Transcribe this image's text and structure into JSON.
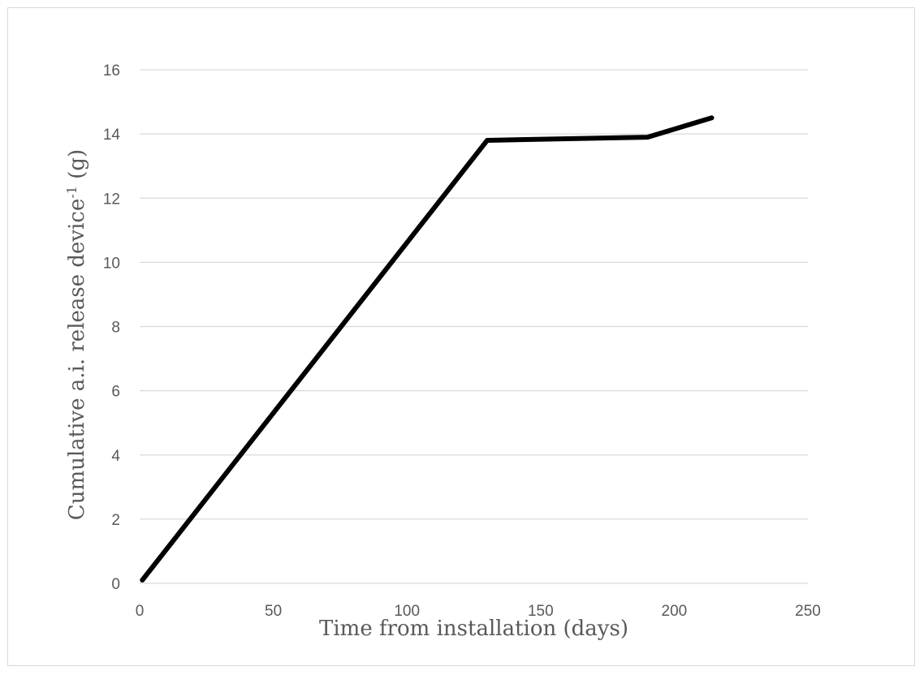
{
  "chart_data": {
    "type": "line",
    "title": "",
    "xlabel": "Time from installation (days)",
    "ylabel_main": "Cumulative a.i. release device",
    "ylabel_superscript": "-1",
    "ylabel_unit": " (g)",
    "xlim": [
      0,
      250
    ],
    "ylim": [
      0,
      16
    ],
    "x_ticks": [
      0,
      50,
      100,
      150,
      200,
      250
    ],
    "y_ticks": [
      0,
      2,
      4,
      6,
      8,
      10,
      12,
      14,
      16
    ],
    "x_tick_labels": [
      "0",
      "50",
      "100",
      "150",
      "200",
      "250"
    ],
    "y_tick_labels": [
      "0",
      "2",
      "4",
      "6",
      "8",
      "10",
      "12",
      "14",
      "16"
    ],
    "grid": "horizontal",
    "legend": "none",
    "series": [
      {
        "color": "#000000",
        "x": [
          1,
          130,
          190,
          214
        ],
        "y": [
          0.1,
          13.8,
          13.9,
          14.5
        ]
      }
    ]
  }
}
